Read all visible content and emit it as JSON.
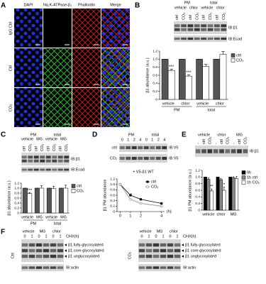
{
  "panels": [
    "A",
    "B",
    "C",
    "D",
    "E",
    "F"
  ],
  "panel_a": {
    "columns": [
      "DAPI",
      "Na,K-ATPase-β₁",
      "Phalloidin",
      "Merge"
    ],
    "rows": [
      "IgG Ctrl",
      "Ctrl",
      "CO₂"
    ]
  },
  "blots": {
    "b": {
      "groups": [
        "PM",
        "total"
      ],
      "treatments": [
        "vehicle",
        "chlor",
        "vehicle",
        "chlor"
      ],
      "lanes": [
        "ctrl",
        "CO₂",
        "ctrl",
        "CO₂",
        "ctrl",
        "CO₂",
        "ctrl",
        "CO₂"
      ],
      "probes": [
        "IB:β1",
        "IB:Ecad"
      ]
    },
    "c": {
      "groups": [
        "PM",
        "total"
      ],
      "treatments": [
        "vehicle",
        "MG",
        "vehicle",
        "MG"
      ],
      "lanes": [
        "ctrl",
        "CO₂",
        "ctrl",
        "CO₂",
        "ctrl",
        "CO₂",
        "ctrl",
        "CO₂"
      ],
      "probes": [
        "IB:β1",
        "IB:Ecad"
      ]
    },
    "d": {
      "groups": [
        "PM",
        "total"
      ],
      "times": [
        0,
        1,
        2,
        4,
        0,
        1,
        2,
        4
      ],
      "rows": [
        "ctrl",
        "CO₂"
      ],
      "probes": [
        "IB:V5",
        "IB:V5"
      ],
      "note": "+ V5-β1 WT"
    },
    "e": {
      "treatments": [
        "vehicle",
        "chlor",
        "MG"
      ],
      "lanes": [
        "-",
        "ctrl",
        "CO₂",
        "-",
        "ctrl",
        "CO₂",
        "-",
        "ctrl",
        "CO₂"
      ],
      "probes": [
        "IB:β1"
      ]
    },
    "f": {
      "sides": [
        {
          "label": "Ctrl",
          "treatments": [
            "vehicle",
            "MG",
            "chlor"
          ],
          "times": [
            0,
            1,
            0,
            1,
            0,
            1
          ]
        },
        {
          "label": "CO₂",
          "treatments": [
            "vehicle",
            "MG",
            "chlor"
          ],
          "times": [
            0,
            1,
            0,
            1,
            0,
            1
          ]
        }
      ],
      "chx": "CHX(h)",
      "bands": [
        "β1 fully-glycosylated",
        "β1 core-glycosylated",
        "β1 unglycosylated"
      ],
      "probe": "IB:actin"
    }
  },
  "chart_data": [
    {
      "type": "bar",
      "ylabel": "β1 abundance (a.u.)",
      "categories": [
        "vehicle",
        "chlor",
        "vehicle",
        "chlor"
      ],
      "groups": [
        "PM",
        "total"
      ],
      "ylim": [
        0,
        1.2
      ],
      "yticks": [
        0,
        0.2,
        0.4,
        0.6,
        0.8,
        {
          "value": 1,
          "label": "1.0"
        },
        1.2
      ],
      "series": [
        {
          "name": "ctrl",
          "color": "#555555",
          "values": [
            1,
            1,
            1,
            1
          ],
          "errors": [
            0,
            0,
            0,
            0
          ]
        },
        {
          "name": "CO₂",
          "color": "#ffffff",
          "values": [
            0.72,
            0.58,
            0.82,
            1.12
          ],
          "errors": [
            0.03,
            0.03,
            0.05,
            0.07
          ],
          "stars": [
            "***",
            "***",
            null,
            null
          ]
        }
      ]
    },
    {
      "type": "bar",
      "ylabel": "β1 abundance (a.u.)",
      "categories": [
        "vehicle",
        "MG",
        "vehicle",
        "MG"
      ],
      "groups": [
        "PM",
        "total"
      ],
      "ylim": [
        0,
        1.2
      ],
      "yticks": [
        0,
        0.2,
        0.4,
        0.6,
        0.8,
        {
          "value": 1,
          "label": "1.0"
        },
        1.2
      ],
      "series": [
        {
          "name": "ctrl",
          "color": "#555555",
          "values": [
            1,
            1,
            1,
            1
          ],
          "errors": [
            0,
            0,
            0,
            0
          ]
        },
        {
          "name": "CO₂",
          "color": "#ffffff",
          "values": [
            0.78,
            1.0,
            0.98,
            1.0
          ],
          "errors": [
            0.04,
            0.1,
            0.1,
            0.12
          ],
          "stars": [
            "***",
            null,
            null,
            null
          ]
        }
      ]
    },
    {
      "type": "line",
      "ylabel": "β1 PM abundance",
      "xlabel": "(h)",
      "x": [
        0,
        1,
        2,
        4
      ],
      "xlim": [
        -0.3,
        4.3
      ],
      "xticks": [
        0,
        1,
        2,
        4
      ],
      "ylim": [
        0,
        1.2
      ],
      "yticks": [
        0,
        0.2,
        0.4,
        0.6,
        0.8,
        {
          "value": 1,
          "label": "1.0"
        },
        1.2
      ],
      "series": [
        {
          "name": "ctrl",
          "color": "#000000",
          "marker_fill": "#000000",
          "values": [
            1,
            0.6,
            0.45,
            0.3
          ]
        },
        {
          "name": "CO₂",
          "color": "#888888",
          "marker_fill": "#ffffff",
          "values": [
            1,
            0.45,
            0.3,
            0.2
          ],
          "stars": [
            null,
            "*",
            null,
            null
          ]
        }
      ]
    },
    {
      "type": "bar",
      "ylabel": "β1 PM abundance (a.u.)",
      "categories": [
        "vehicle",
        "chlor",
        "MG"
      ],
      "ylim": [
        0,
        1.2
      ],
      "yticks": [
        0,
        0.2,
        0.4,
        0.6,
        0.8,
        {
          "value": 1,
          "label": "1.0"
        },
        1.2
      ],
      "series": [
        {
          "name": "0h",
          "color": "#000000",
          "values": [
            1,
            1,
            1
          ],
          "errors": [
            0,
            0,
            0
          ]
        },
        {
          "name": "1h ctrl",
          "color": "#888888",
          "values": [
            0.93,
            0.92,
            0.98
          ],
          "errors": [
            0.04,
            0.04,
            0.03
          ]
        },
        {
          "name": "1h CO₂",
          "color": "#ffffff",
          "values": [
            0.58,
            0.6,
            0.95
          ],
          "errors": [
            0.06,
            0.1,
            0.07
          ],
          "stars": [
            "**",
            "*",
            null
          ]
        }
      ]
    }
  ]
}
